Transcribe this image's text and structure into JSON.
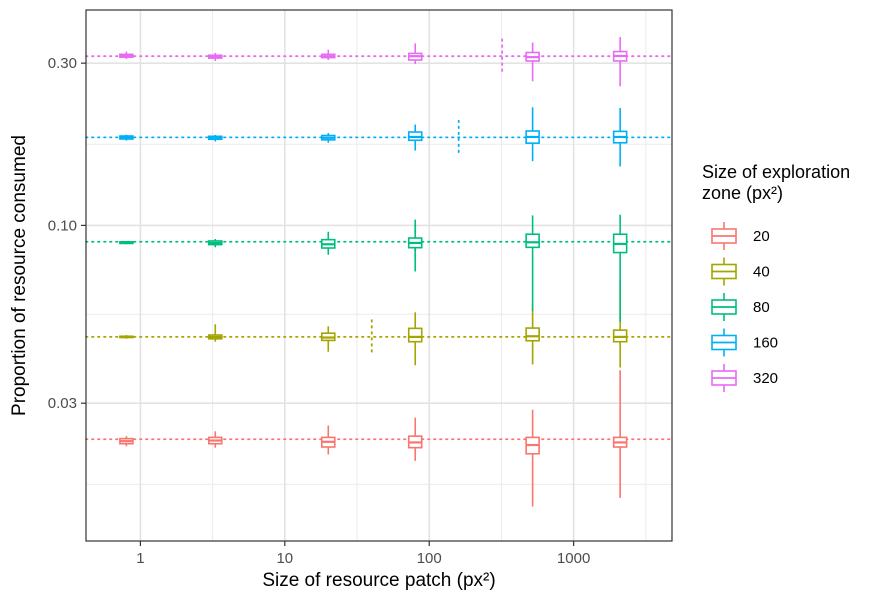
{
  "chart_data": {
    "type": "boxplot",
    "xlabel": "Size of resource patch (px²)",
    "ylabel": "Proportion of resource consumed",
    "x_scale": "log10",
    "y_scale": "log10",
    "xlim": [
      0.42,
      4800
    ],
    "ylim": [
      0.0118,
      0.43
    ],
    "x_ticks": [
      1,
      10,
      100,
      1000
    ],
    "x_tick_labels": [
      "1",
      "10",
      "100",
      "1000"
    ],
    "y_ticks": [
      0.03,
      0.1,
      0.3
    ],
    "y_tick_labels": [
      "0.03",
      "0.10",
      "0.30"
    ],
    "grid": true,
    "legend": {
      "title_lines": [
        "Size of exploration",
        " zone (px²)"
      ],
      "placement": "right"
    },
    "series": [
      {
        "name": "20",
        "color": "#F8766D",
        "reference_line": 0.0235,
        "boxes": [
          {
            "x": 0.8,
            "whisker_low": 0.0224,
            "q1": 0.0228,
            "median": 0.0232,
            "q3": 0.0236,
            "whisker_high": 0.024
          },
          {
            "x": 3.3,
            "whisker_low": 0.0222,
            "q1": 0.0228,
            "median": 0.0233,
            "q3": 0.0238,
            "whisker_high": 0.0248
          },
          {
            "x": 20,
            "whisker_low": 0.0212,
            "q1": 0.0223,
            "median": 0.0231,
            "q3": 0.0238,
            "whisker_high": 0.0258
          },
          {
            "x": 80,
            "whisker_low": 0.0203,
            "q1": 0.0222,
            "median": 0.023,
            "q3": 0.024,
            "whisker_high": 0.0272
          },
          {
            "x": 520,
            "whisker_low": 0.0149,
            "q1": 0.0213,
            "median": 0.0226,
            "q3": 0.0238,
            "whisker_high": 0.0287
          },
          {
            "x": 2100,
            "whisker_low": 0.0158,
            "q1": 0.0223,
            "median": 0.023,
            "q3": 0.0238,
            "whisker_high": 0.0375
          }
        ]
      },
      {
        "name": "40",
        "color": "#A3A500",
        "reference_line": 0.047,
        "vertical_marker_x": 40,
        "boxes": [
          {
            "x": 0.8,
            "whisker_low": 0.0464,
            "q1": 0.0468,
            "median": 0.047,
            "q3": 0.0472,
            "whisker_high": 0.0476
          },
          {
            "x": 3.3,
            "whisker_low": 0.0455,
            "q1": 0.0464,
            "median": 0.047,
            "q3": 0.0476,
            "whisker_high": 0.0512
          },
          {
            "x": 20,
            "whisker_low": 0.0425,
            "q1": 0.0459,
            "median": 0.0468,
            "q3": 0.0482,
            "whisker_high": 0.0505
          },
          {
            "x": 80,
            "whisker_low": 0.0388,
            "q1": 0.0455,
            "median": 0.047,
            "q3": 0.0498,
            "whisker_high": 0.0555
          },
          {
            "x": 520,
            "whisker_low": 0.039,
            "q1": 0.0458,
            "median": 0.0472,
            "q3": 0.0499,
            "whisker_high": 0.0585
          },
          {
            "x": 2100,
            "whisker_low": 0.0382,
            "q1": 0.0455,
            "median": 0.047,
            "q3": 0.0492,
            "whisker_high": 0.069
          }
        ]
      },
      {
        "name": "80",
        "color": "#00BF7D",
        "reference_line": 0.0895,
        "vertical_marker_x": 80,
        "boxes": [
          {
            "x": 0.8,
            "whisker_low": 0.088,
            "q1": 0.0885,
            "median": 0.089,
            "q3": 0.0895,
            "whisker_high": 0.09
          },
          {
            "x": 3.3,
            "whisker_low": 0.0862,
            "q1": 0.0878,
            "median": 0.0888,
            "q3": 0.09,
            "whisker_high": 0.0912
          },
          {
            "x": 20,
            "whisker_low": 0.082,
            "q1": 0.0858,
            "median": 0.088,
            "q3": 0.0908,
            "whisker_high": 0.0958
          },
          {
            "x": 80,
            "whisker_low": 0.0732,
            "q1": 0.086,
            "median": 0.0888,
            "q3": 0.0918,
            "whisker_high": 0.104
          },
          {
            "x": 520,
            "whisker_low": 0.056,
            "q1": 0.0862,
            "median": 0.0892,
            "q3": 0.0942,
            "whisker_high": 0.107
          },
          {
            "x": 2100,
            "whisker_low": 0.052,
            "q1": 0.0832,
            "median": 0.0882,
            "q3": 0.0942,
            "whisker_high": 0.1075
          }
        ]
      },
      {
        "name": "160",
        "color": "#00B0F6",
        "reference_line": 0.1815,
        "vertical_marker_x": 160,
        "boxes": [
          {
            "x": 0.8,
            "whisker_low": 0.1775,
            "q1": 0.1795,
            "median": 0.1815,
            "q3": 0.1832,
            "whisker_high": 0.1848
          },
          {
            "x": 3.3,
            "whisker_low": 0.1765,
            "q1": 0.1792,
            "median": 0.181,
            "q3": 0.1828,
            "whisker_high": 0.1845
          },
          {
            "x": 20,
            "whisker_low": 0.175,
            "q1": 0.1785,
            "median": 0.181,
            "q3": 0.1838,
            "whisker_high": 0.187
          },
          {
            "x": 80,
            "whisker_low": 0.166,
            "q1": 0.178,
            "median": 0.182,
            "q3": 0.1882,
            "whisker_high": 0.198
          },
          {
            "x": 520,
            "whisker_low": 0.1545,
            "q1": 0.1745,
            "median": 0.182,
            "q3": 0.1895,
            "whisker_high": 0.2225
          },
          {
            "x": 2100,
            "whisker_low": 0.149,
            "q1": 0.175,
            "median": 0.182,
            "q3": 0.189,
            "whisker_high": 0.2215
          }
        ]
      },
      {
        "name": "320",
        "color": "#E76BF3",
        "reference_line": 0.3145,
        "vertical_marker_x": 320,
        "boxes": [
          {
            "x": 0.8,
            "whisker_low": 0.3085,
            "q1": 0.3125,
            "median": 0.315,
            "q3": 0.3185,
            "whisker_high": 0.3245
          },
          {
            "x": 3.3,
            "whisker_low": 0.3045,
            "q1": 0.3105,
            "median": 0.3135,
            "q3": 0.3165,
            "whisker_high": 0.3215
          },
          {
            "x": 20,
            "whisker_low": 0.3065,
            "q1": 0.3115,
            "median": 0.3145,
            "q3": 0.3185,
            "whisker_high": 0.3285
          },
          {
            "x": 80,
            "whisker_low": 0.2985,
            "q1": 0.3065,
            "median": 0.3145,
            "q3": 0.3205,
            "whisker_high": 0.343
          },
          {
            "x": 520,
            "whisker_low": 0.2655,
            "q1": 0.3045,
            "median": 0.3125,
            "q3": 0.3225,
            "whisker_high": 0.345
          },
          {
            "x": 2100,
            "whisker_low": 0.2565,
            "q1": 0.3045,
            "median": 0.315,
            "q3": 0.3245,
            "whisker_high": 0.358
          }
        ]
      }
    ]
  }
}
